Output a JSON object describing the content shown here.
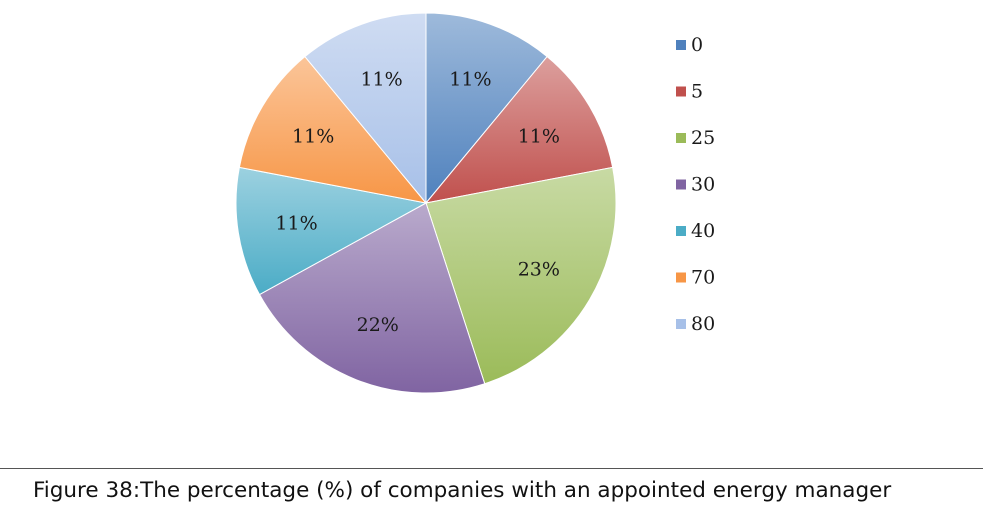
{
  "chart_data": {
    "type": "pie",
    "categories": [
      "0",
      "5",
      "25",
      "30",
      "40",
      "70",
      "80"
    ],
    "values": [
      11,
      11,
      23,
      22,
      11,
      11,
      11
    ],
    "labels": [
      "11%",
      "11%",
      "23%",
      "22%",
      "11%",
      "11%",
      "11%"
    ],
    "colors": [
      "#4f81bd",
      "#c0504d",
      "#9bbb59",
      "#8064a2",
      "#4bacc6",
      "#f79646",
      "#a7c0e8"
    ],
    "start_angle": "12 o'clock",
    "direction": "clockwise",
    "legend_position": "right"
  },
  "caption": "Figure 38:The percentage (%) of companies with an appointed energy manager"
}
